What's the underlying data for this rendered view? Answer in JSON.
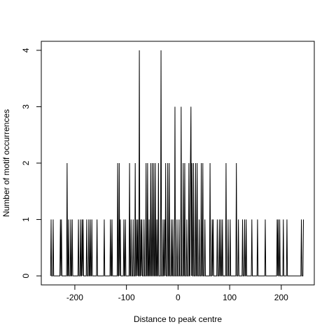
{
  "chart_data": {
    "type": "line",
    "xlabel": "Distance to peak centre",
    "ylabel": "Number of motif occurrences",
    "color": "#000000",
    "xlim": [
      -265,
      264
    ],
    "ylim": [
      -0.16,
      4.16
    ],
    "xticks": [
      -200,
      -100,
      0,
      100,
      200
    ],
    "yticks": [
      0,
      1,
      2,
      3,
      4
    ],
    "x": [
      -247,
      -246,
      -245,
      -243,
      -242,
      -241,
      -229,
      -228,
      -227,
      -226,
      -225,
      -216,
      -215,
      -214,
      -213,
      -212,
      -211,
      -209,
      -208,
      -207,
      -206,
      -205,
      -204,
      -194,
      -193,
      -192,
      -190,
      -189,
      -188,
      -187,
      -186,
      -185,
      -184,
      -183,
      -178,
      -177,
      -176,
      -174,
      -173,
      -172,
      -171,
      -170,
      -169,
      -168,
      -167,
      -166,
      -158,
      -157,
      -156,
      -144,
      -143,
      -142,
      -132,
      -131,
      -130,
      -129,
      -128,
      -127,
      -118,
      -117,
      -116,
      -115,
      -114,
      -113,
      -112,
      -111,
      -106,
      -105,
      -104,
      -103,
      -102,
      -101,
      -95,
      -94,
      -93,
      -92,
      -91,
      -90,
      -88,
      -87,
      -86,
      -84,
      -83,
      -82,
      -81,
      -80,
      -79,
      -78,
      -77,
      -76,
      -75,
      -74,
      -73,
      -72,
      -71,
      -70,
      -69,
      -67,
      -66,
      -65,
      -63,
      -62,
      -61,
      -60,
      -59,
      -58,
      -57,
      -56,
      -55,
      -54,
      -53,
      -52,
      -51,
      -50,
      -49,
      -48,
      -47,
      -46,
      -45,
      -44,
      -43,
      -42,
      -41,
      -40,
      -39,
      -38,
      -37,
      -34,
      -33,
      -32,
      -30,
      -29,
      -28,
      -27,
      -26,
      -25,
      -24,
      -23,
      -21,
      -20,
      -19,
      -18,
      -17,
      -16,
      -14,
      -13,
      -12,
      -11,
      -10,
      -9,
      -7,
      -6,
      -5,
      -3,
      -2,
      -1,
      1,
      2,
      3,
      5,
      6,
      7,
      9,
      10,
      11,
      12,
      13,
      14,
      16,
      17,
      18,
      20,
      21,
      22,
      23,
      24,
      25,
      26,
      27,
      28,
      29,
      30,
      31,
      33,
      34,
      35,
      36,
      37,
      38,
      40,
      41,
      42,
      44,
      45,
      46,
      47,
      48,
      49,
      51,
      52,
      53,
      61,
      62,
      63,
      65,
      66,
      67,
      68,
      69,
      75,
      76,
      77,
      79,
      80,
      81,
      82,
      83,
      84,
      85,
      86,
      87,
      92,
      93,
      94,
      96,
      97,
      98,
      100,
      101,
      102,
      112,
      113,
      114,
      116,
      117,
      118,
      124,
      125,
      126,
      128,
      129,
      130,
      131,
      132,
      133,
      142,
      143,
      144,
      153,
      154,
      155,
      168,
      169,
      170,
      191,
      192,
      193,
      194,
      195,
      196,
      197,
      198,
      203,
      204,
      205,
      210,
      211,
      212,
      238,
      239,
      240,
      242,
      243
    ],
    "values": [
      0,
      1,
      0,
      0,
      1,
      0,
      0,
      1,
      0,
      1,
      0,
      0,
      2,
      0,
      0,
      1,
      0,
      0,
      1,
      0,
      0,
      1,
      0,
      0,
      1,
      0,
      0,
      1,
      0,
      0,
      1,
      0,
      1,
      0,
      0,
      1,
      0,
      0,
      1,
      0,
      0,
      1,
      0,
      0,
      1,
      0,
      0,
      1,
      0,
      0,
      1,
      0,
      0,
      1,
      0,
      0,
      1,
      0,
      0,
      2,
      0,
      0,
      2,
      0,
      1,
      0,
      0,
      1,
      0,
      0,
      1,
      0,
      0,
      2,
      0,
      0,
      1,
      0,
      0,
      1,
      0,
      0,
      2,
      0,
      0,
      1,
      0,
      1,
      0,
      0,
      4,
      0,
      0,
      1,
      0,
      1,
      0,
      0,
      1,
      0,
      0,
      2,
      0,
      0,
      2,
      0,
      0,
      1,
      0,
      0,
      2,
      0,
      0,
      2,
      0,
      0,
      2,
      0,
      0,
      2,
      0,
      0,
      1,
      0,
      0,
      2,
      0,
      0,
      4,
      0,
      0,
      1,
      0,
      0,
      1,
      0,
      2,
      0,
      0,
      2,
      0,
      0,
      2,
      0,
      0,
      1,
      0,
      0,
      1,
      0,
      0,
      3,
      0,
      0,
      1,
      0,
      0,
      1,
      0,
      0,
      3,
      0,
      0,
      2,
      0,
      0,
      2,
      0,
      0,
      1,
      0,
      0,
      2,
      0,
      0,
      2,
      3,
      0,
      2,
      0,
      0,
      2,
      0,
      0,
      2,
      0,
      0,
      2,
      0,
      0,
      1,
      0,
      0,
      2,
      0,
      0,
      2,
      0,
      0,
      1,
      0,
      0,
      2,
      0,
      0,
      1,
      0,
      1,
      0,
      0,
      1,
      0,
      0,
      1,
      0,
      0,
      1,
      0,
      0,
      1,
      0,
      0,
      2,
      0,
      0,
      1,
      0,
      0,
      1,
      0,
      0,
      2,
      0,
      0,
      1,
      0,
      0,
      1,
      0,
      0,
      1,
      0,
      0,
      1,
      0,
      0,
      1,
      0,
      0,
      1,
      0,
      0,
      1,
      0,
      0,
      1,
      0,
      1,
      0,
      0,
      1,
      0,
      0,
      1,
      0,
      0,
      1,
      0,
      0,
      1,
      0,
      0,
      1
    ]
  }
}
